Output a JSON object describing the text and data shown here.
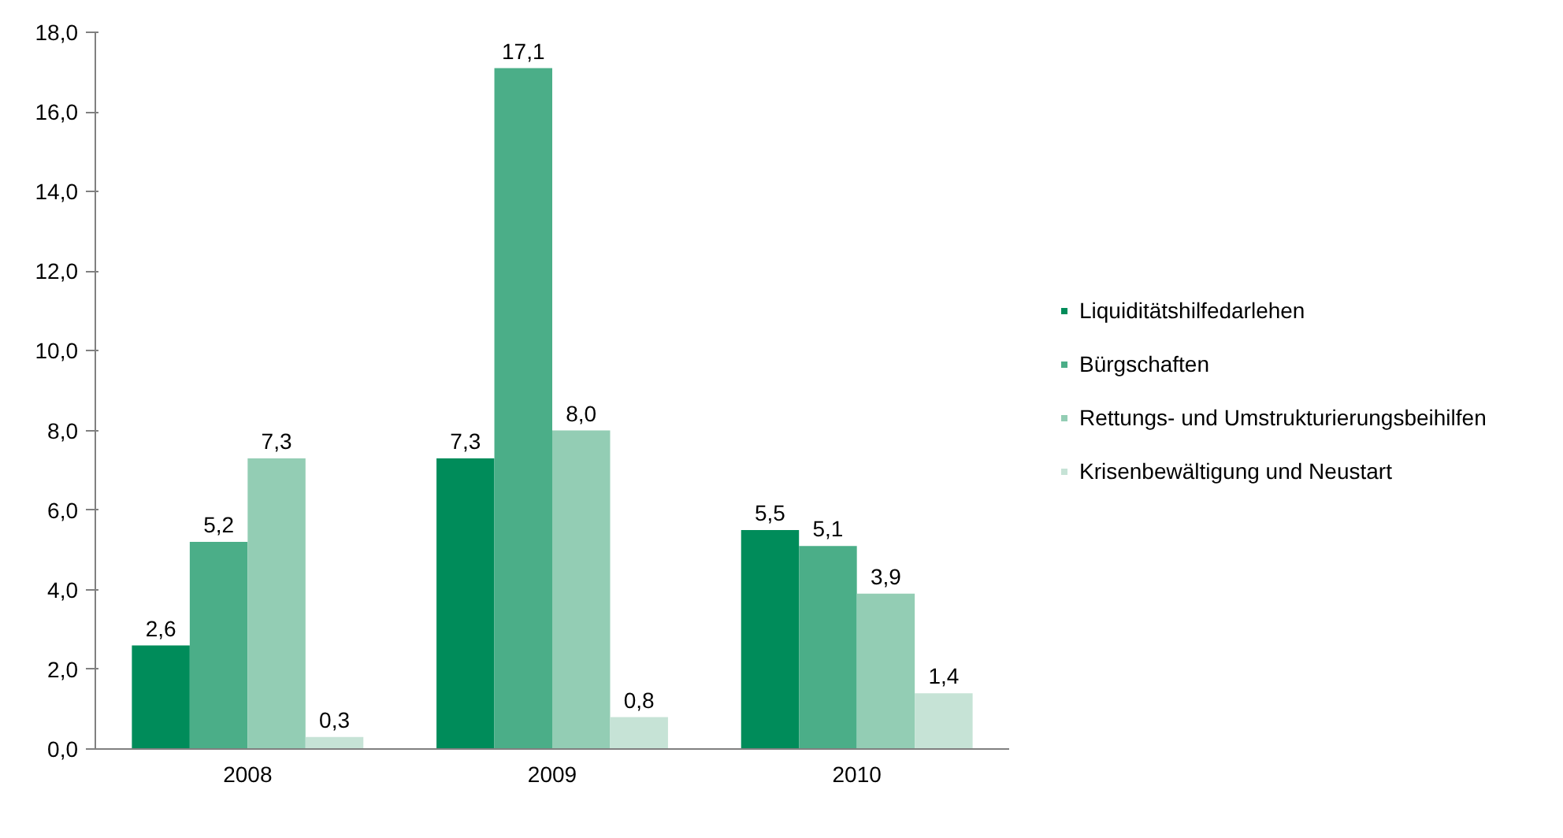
{
  "chart_data": {
    "type": "bar",
    "categories": [
      "2008",
      "2009",
      "2010"
    ],
    "series": [
      {
        "name": "Liquiditätshilfedarlehen",
        "color": "#008c5a",
        "values": [
          2.6,
          7.3,
          5.5
        ],
        "value_labels": [
          "2,6",
          "7,3",
          "5,5"
        ]
      },
      {
        "name": "Bürgschaften",
        "color": "#4bae88",
        "values": [
          5.2,
          17.1,
          5.1
        ],
        "value_labels": [
          "5,2",
          "17,1",
          "5,1"
        ]
      },
      {
        "name": "Rettungs- und Umstrukturierungsbeihilfen",
        "color": "#93cdb4",
        "values": [
          7.3,
          8.0,
          3.9
        ],
        "value_labels": [
          "7,3",
          "8,0",
          "3,9"
        ]
      },
      {
        "name": "Krisenbewältigung und Neustart",
        "color": "#c6e3d6",
        "values": [
          0.3,
          0.8,
          1.4
        ],
        "value_labels": [
          "0,3",
          "0,8",
          "1,4"
        ]
      }
    ],
    "ylim": [
      0,
      18
    ],
    "yticks": [
      {
        "value": 0,
        "label": "0,0"
      },
      {
        "value": 2,
        "label": "2,0"
      },
      {
        "value": 4,
        "label": "4,0"
      },
      {
        "value": 6,
        "label": "6,0"
      },
      {
        "value": 8,
        "label": "8,0"
      },
      {
        "value": 10,
        "label": "10,0"
      },
      {
        "value": 12,
        "label": "12,0"
      },
      {
        "value": 14,
        "label": "14,0"
      },
      {
        "value": 16,
        "label": "16,0"
      },
      {
        "value": 18,
        "label": "18,0"
      }
    ],
    "grid": false,
    "legend": "right"
  }
}
